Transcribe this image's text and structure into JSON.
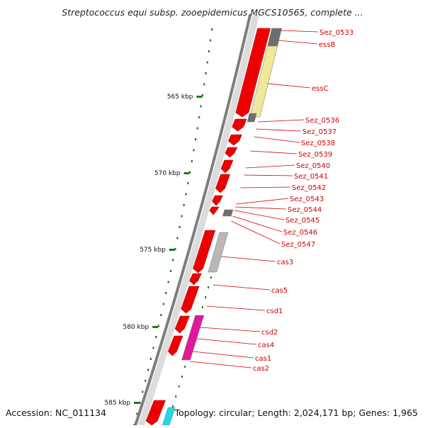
{
  "title": "Streptococcus equi subsp. zooepidemicus MGCS10565, complete ...",
  "accession_text": "Accession: NC_011134",
  "summary_text": "Topology: circular; Length: 2,024,171 bp; Genes: 1,965",
  "colors": {
    "backbone": "#7d7d7d",
    "feature_red": "#ee0000",
    "label_red": "#d00000",
    "tick_green": "#1a7a1a",
    "gray_box": "#b8b8b8",
    "dark_gray_box": "#6e6e6e",
    "yellow_box": "#efe79a",
    "magenta_box": "#e0189a",
    "cyan_box": "#22d6e6"
  },
  "kbp_ticks": [
    "565 kbp",
    "570 kbp",
    "575 kbp",
    "580 kbp",
    "585 kbp"
  ],
  "genes": [
    "Sez_0533",
    "essB",
    "essC",
    "Sez_0536",
    "Sez_0537",
    "Sez_0538",
    "Sez_0539",
    "Sez_0540",
    "Sez_0541",
    "Sez_0542",
    "Sez_0543",
    "Sez_0544",
    "Sez_0545",
    "Sez_0546",
    "Sez_0547",
    "cas3",
    "cas5",
    "csd1",
    "csd2",
    "cas4",
    "cas1",
    "cas2"
  ]
}
